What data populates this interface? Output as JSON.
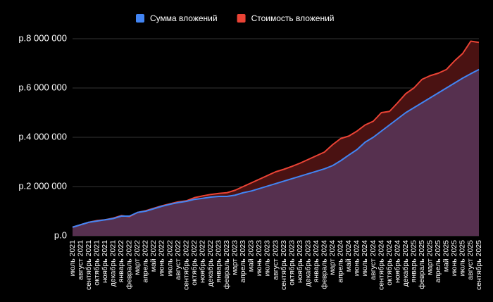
{
  "chart_data": {
    "type": "area",
    "categories": [
      "июль 2021",
      "август 2021",
      "сентябрь 2021",
      "октябрь 2021",
      "ноябрь 2021",
      "декабрь 2021",
      "январь 2022",
      "февраль 2022",
      "март 2022",
      "апрель 2022",
      "май 2022",
      "июнь 2022",
      "июль 2022",
      "август 2022",
      "сентябрь 2022",
      "октябрь 2022",
      "ноябрь 2022",
      "декабрь 2022",
      "январь 2023",
      "февраль 2023",
      "март 2023",
      "апрель 2023",
      "май 2023",
      "июнь 2023",
      "июль 2023",
      "август 2023",
      "сентябрь 2023",
      "октябрь 2023",
      "ноябрь 2023",
      "декабрь 2023",
      "январь 2024",
      "февраль 2024",
      "март 2024",
      "апрель 2024",
      "май 2024",
      "июнь 2024",
      "июль 2024",
      "август 2024",
      "сентябрь 2024",
      "октябрь 2024",
      "ноябрь 2024",
      "декабрь 2024",
      "январь 2025",
      "февраль 2025",
      "март 2025",
      "апрель 2025",
      "май 2025",
      "июнь 2025",
      "июль 2025",
      "август 2025",
      "сентябрь 2025"
    ],
    "series": [
      {
        "name": "Сумма вложений",
        "color": "#4285f4",
        "fill": "#56304f",
        "values": [
          350000,
          450000,
          550000,
          600000,
          650000,
          700000,
          800000,
          800000,
          950000,
          1000000,
          1100000,
          1200000,
          1280000,
          1350000,
          1400000,
          1480000,
          1520000,
          1570000,
          1600000,
          1600000,
          1650000,
          1750000,
          1820000,
          1920000,
          2020000,
          2120000,
          2220000,
          2320000,
          2420000,
          2520000,
          2620000,
          2720000,
          2850000,
          3050000,
          3280000,
          3500000,
          3800000,
          4000000,
          4250000,
          4500000,
          4750000,
          5000000,
          5200000,
          5400000,
          5600000,
          5800000,
          6000000,
          6200000,
          6400000,
          6580000,
          6750000
        ]
      },
      {
        "name": "Стоимость вложений",
        "color": "#ea4335",
        "fill": "#4a1212",
        "values": [
          350000,
          450000,
          550000,
          620000,
          650000,
          720000,
          820000,
          780000,
          950000,
          1020000,
          1120000,
          1220000,
          1300000,
          1380000,
          1420000,
          1550000,
          1620000,
          1680000,
          1720000,
          1750000,
          1850000,
          2000000,
          2150000,
          2300000,
          2450000,
          2600000,
          2700000,
          2820000,
          2950000,
          3100000,
          3250000,
          3400000,
          3700000,
          3950000,
          4050000,
          4250000,
          4500000,
          4650000,
          5000000,
          5050000,
          5400000,
          5770000,
          6000000,
          6350000,
          6500000,
          6600000,
          6750000,
          7100000,
          7400000,
          7900000,
          7850000
        ]
      }
    ],
    "ylim": [
      0,
      8000000
    ],
    "yticks": [
      {
        "value": 0,
        "label": "р.0"
      },
      {
        "value": 2000000,
        "label": "р.2 000 000"
      },
      {
        "value": 4000000,
        "label": "р.4 000 000"
      },
      {
        "value": 6000000,
        "label": "р.6 000 000"
      },
      {
        "value": 8000000,
        "label": "р.8 000 000"
      }
    ],
    "grid": true,
    "legend": "top"
  }
}
